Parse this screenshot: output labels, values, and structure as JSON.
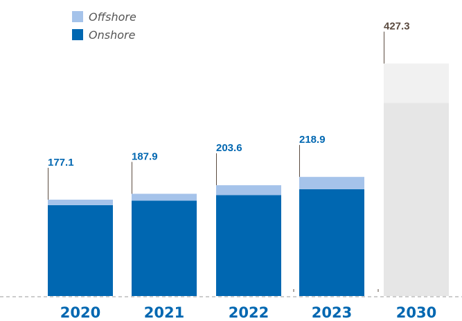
{
  "chart_data": {
    "type": "bar",
    "stacked": true,
    "categories": [
      "2020",
      "2021",
      "2022",
      "2023",
      "2030"
    ],
    "series": [
      {
        "name": "Onshore",
        "values": [
          167.0,
          175.2,
          185.4,
          196.3,
          355.0
        ],
        "color": "#0067b1"
      },
      {
        "name": "Offshore",
        "values": [
          10.1,
          12.7,
          18.2,
          22.6,
          72.3
        ],
        "color": "#a5c3ea"
      }
    ],
    "totals": [
      "177.1",
      "187.9",
      "203.6",
      "218.9",
      "427.3"
    ],
    "projection_categories": [
      "2030"
    ],
    "projection_colors": {
      "Onshore": "#e6e6e6",
      "Offshore": "#f1f1f1"
    },
    "colors": {
      "historical_label": "#0067b1",
      "projection_label": "#5a4a3f",
      "year_label": "#0067b1",
      "leader_line": "#5a4a3f",
      "baseline": "#9a9a9a"
    },
    "legend_position": "top-left",
    "grid": false
  },
  "legend": {
    "items": [
      {
        "label": "Offshore",
        "color": "#a5c3ea"
      },
      {
        "label": "Onshore",
        "color": "#0067b1"
      }
    ]
  }
}
